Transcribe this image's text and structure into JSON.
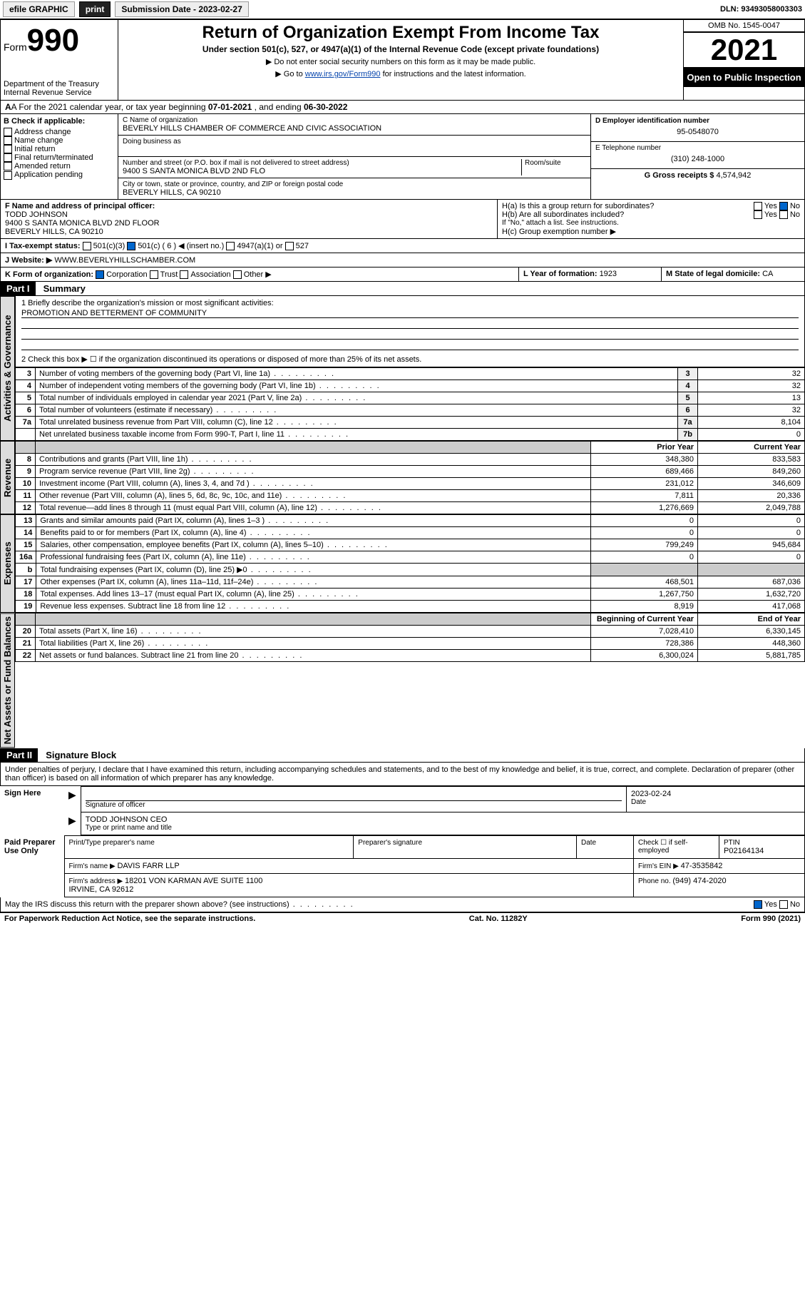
{
  "topbar": {
    "efile": "efile GRAPHIC",
    "print": "print",
    "sub_label": "Submission Date - ",
    "sub_date": "2023-02-27",
    "dln": "DLN: 93493058003303"
  },
  "header": {
    "form_label": "Form",
    "form_num": "990",
    "dept": "Department of the Treasury",
    "irs": "Internal Revenue Service",
    "title": "Return of Organization Exempt From Income Tax",
    "sub1": "Under section 501(c), 527, or 4947(a)(1) of the Internal Revenue Code (except private foundations)",
    "sub2": "▶ Do not enter social security numbers on this form as it may be made public.",
    "sub3_a": "▶ Go to ",
    "sub3_link": "www.irs.gov/Form990",
    "sub3_b": " for instructions and the latest information.",
    "omb": "OMB No. 1545-0047",
    "year": "2021",
    "open_pub": "Open to Public Inspection"
  },
  "row_a": {
    "text_a": "A For the 2021 calendar year, or tax year beginning ",
    "begin": "07-01-2021",
    "text_b": " , and ending ",
    "end": "06-30-2022"
  },
  "col_b": {
    "label": "B Check if applicable:",
    "items": [
      "Address change",
      "Name change",
      "Initial return",
      "Final return/terminated",
      "Amended return",
      "Application pending"
    ]
  },
  "col_c": {
    "name_label": "C Name of organization",
    "name": "BEVERLY HILLS CHAMBER OF COMMERCE AND CIVIC ASSOCIATION",
    "dba_label": "Doing business as",
    "street_label": "Number and street (or P.O. box if mail is not delivered to street address)",
    "room": "Room/suite",
    "street": "9400 S SANTA MONICA BLVD 2ND FLO",
    "city_label": "City or town, state or province, country, and ZIP or foreign postal code",
    "city": "BEVERLY HILLS, CA  90210"
  },
  "col_d": {
    "ein_label": "D Employer identification number",
    "ein": "95-0548070",
    "tel_label": "E Telephone number",
    "tel": "(310) 248-1000",
    "gross_label": "G Gross receipts $ ",
    "gross": "4,574,942"
  },
  "row_f": {
    "label": "F Name and address of principal officer:",
    "name": "TODD JOHNSON",
    "addr": "9400 S SANTA MONICA BLVD 2ND FLOOR",
    "city": "BEVERLY HILLS, CA  90210"
  },
  "row_h": {
    "ha": "H(a)  Is this a group return for subordinates?",
    "hb": "H(b)  Are all subordinates included?",
    "hb_note": "If \"No,\" attach a list. See instructions.",
    "hc": "H(c)  Group exemption number ▶",
    "yes": "Yes",
    "no": "No"
  },
  "row_i": {
    "label": "I Tax-exempt status:",
    "o1": "501(c)(3)",
    "o2": "501(c) ( 6 ) ◀ (insert no.)",
    "o3": "4947(a)(1) or",
    "o4": "527"
  },
  "row_j": {
    "label": "J Website: ▶ ",
    "val": "WWW.BEVERLYHILLSCHAMBER.COM"
  },
  "row_k": {
    "label": "K Form of organization:",
    "o1": "Corporation",
    "o2": "Trust",
    "o3": "Association",
    "o4": "Other ▶"
  },
  "row_l": {
    "label": "L Year of formation: ",
    "val": "1923"
  },
  "row_m": {
    "label": "M State of legal domicile: ",
    "val": "CA"
  },
  "part1": {
    "hdr": "Part I",
    "title": "Summary",
    "l1_label": "1  Briefly describe the organization's mission or most significant activities:",
    "l1_val": "PROMOTION AND BETTERMENT OF COMMUNITY",
    "l2": "2   Check this box ▶ ☐  if the organization discontinued its operations or disposed of more than 25% of its net assets.",
    "vtab1": "Activities & Governance",
    "vtab2": "Revenue",
    "vtab3": "Expenses",
    "vtab4": "Net Assets or Fund Balances",
    "prior": "Prior Year",
    "current": "Current Year",
    "begin": "Beginning of Current Year",
    "end": "End of Year"
  },
  "gov_rows": [
    {
      "n": "3",
      "d": "Number of voting members of the governing body (Part VI, line 1a)",
      "r": "3",
      "v": "32"
    },
    {
      "n": "4",
      "d": "Number of independent voting members of the governing body (Part VI, line 1b)",
      "r": "4",
      "v": "32"
    },
    {
      "n": "5",
      "d": "Total number of individuals employed in calendar year 2021 (Part V, line 2a)",
      "r": "5",
      "v": "13"
    },
    {
      "n": "6",
      "d": "Total number of volunteers (estimate if necessary)",
      "r": "6",
      "v": "32"
    },
    {
      "n": "7a",
      "d": "Total unrelated business revenue from Part VIII, column (C), line 12",
      "r": "7a",
      "v": "8,104"
    },
    {
      "n": "",
      "d": "Net unrelated business taxable income from Form 990-T, Part I, line 11",
      "r": "7b",
      "v": "0"
    }
  ],
  "rev_rows": [
    {
      "n": "8",
      "d": "Contributions and grants (Part VIII, line 1h)",
      "p": "348,380",
      "c": "833,583"
    },
    {
      "n": "9",
      "d": "Program service revenue (Part VIII, line 2g)",
      "p": "689,466",
      "c": "849,260"
    },
    {
      "n": "10",
      "d": "Investment income (Part VIII, column (A), lines 3, 4, and 7d )",
      "p": "231,012",
      "c": "346,609"
    },
    {
      "n": "11",
      "d": "Other revenue (Part VIII, column (A), lines 5, 6d, 8c, 9c, 10c, and 11e)",
      "p": "7,811",
      "c": "20,336"
    },
    {
      "n": "12",
      "d": "Total revenue—add lines 8 through 11 (must equal Part VIII, column (A), line 12)",
      "p": "1,276,669",
      "c": "2,049,788"
    }
  ],
  "exp_rows": [
    {
      "n": "13",
      "d": "Grants and similar amounts paid (Part IX, column (A), lines 1–3 )",
      "p": "0",
      "c": "0"
    },
    {
      "n": "14",
      "d": "Benefits paid to or for members (Part IX, column (A), line 4)",
      "p": "0",
      "c": "0"
    },
    {
      "n": "15",
      "d": "Salaries, other compensation, employee benefits (Part IX, column (A), lines 5–10)",
      "p": "799,249",
      "c": "945,684"
    },
    {
      "n": "16a",
      "d": "Professional fundraising fees (Part IX, column (A), line 11e)",
      "p": "0",
      "c": "0"
    },
    {
      "n": "b",
      "d": "Total fundraising expenses (Part IX, column (D), line 25) ▶0",
      "p": "",
      "c": "",
      "shade": true
    },
    {
      "n": "17",
      "d": "Other expenses (Part IX, column (A), lines 11a–11d, 11f–24e)",
      "p": "468,501",
      "c": "687,036"
    },
    {
      "n": "18",
      "d": "Total expenses. Add lines 13–17 (must equal Part IX, column (A), line 25)",
      "p": "1,267,750",
      "c": "1,632,720"
    },
    {
      "n": "19",
      "d": "Revenue less expenses. Subtract line 18 from line 12",
      "p": "8,919",
      "c": "417,068"
    }
  ],
  "net_rows": [
    {
      "n": "20",
      "d": "Total assets (Part X, line 16)",
      "p": "7,028,410",
      "c": "6,330,145"
    },
    {
      "n": "21",
      "d": "Total liabilities (Part X, line 26)",
      "p": "728,386",
      "c": "448,360"
    },
    {
      "n": "22",
      "d": "Net assets or fund balances. Subtract line 21 from line 20",
      "p": "6,300,024",
      "c": "5,881,785"
    }
  ],
  "part2": {
    "hdr": "Part II",
    "title": "Signature Block",
    "decl": "Under penalties of perjury, I declare that I have examined this return, including accompanying schedules and statements, and to the best of my knowledge and belief, it is true, correct, and complete. Declaration of preparer (other than officer) is based on all information of which preparer has any knowledge."
  },
  "sign": {
    "here": "Sign Here",
    "sig_off": "Signature of officer",
    "date_label": "Date",
    "date": "2023-02-24",
    "name": "TODD JOHNSON CEO",
    "type_label": "Type or print name and title"
  },
  "paid": {
    "label": "Paid Preparer Use Only",
    "c1": "Print/Type preparer's name",
    "c2": "Preparer's signature",
    "c3": "Date",
    "c4a": "Check ☐ if self-employed",
    "c4b": "PTIN",
    "ptin": "P02164134",
    "firm_name_label": "Firm's name    ▶ ",
    "firm_name": "DAVIS FARR LLP",
    "firm_ein_label": "Firm's EIN ▶ ",
    "firm_ein": "47-3535842",
    "firm_addr_label": "Firm's address ▶ ",
    "firm_addr": "18201 VON KARMAN AVE SUITE 1100",
    "firm_city": "IRVINE, CA  92612",
    "phone_label": "Phone no. ",
    "phone": "(949) 474-2020"
  },
  "discuss": {
    "q": "May the IRS discuss this return with the preparer shown above? (see instructions)",
    "yes": "Yes",
    "no": "No"
  },
  "footer": {
    "left": "For Paperwork Reduction Act Notice, see the separate instructions.",
    "mid": "Cat. No. 11282Y",
    "right": "Form 990 (2021)"
  }
}
